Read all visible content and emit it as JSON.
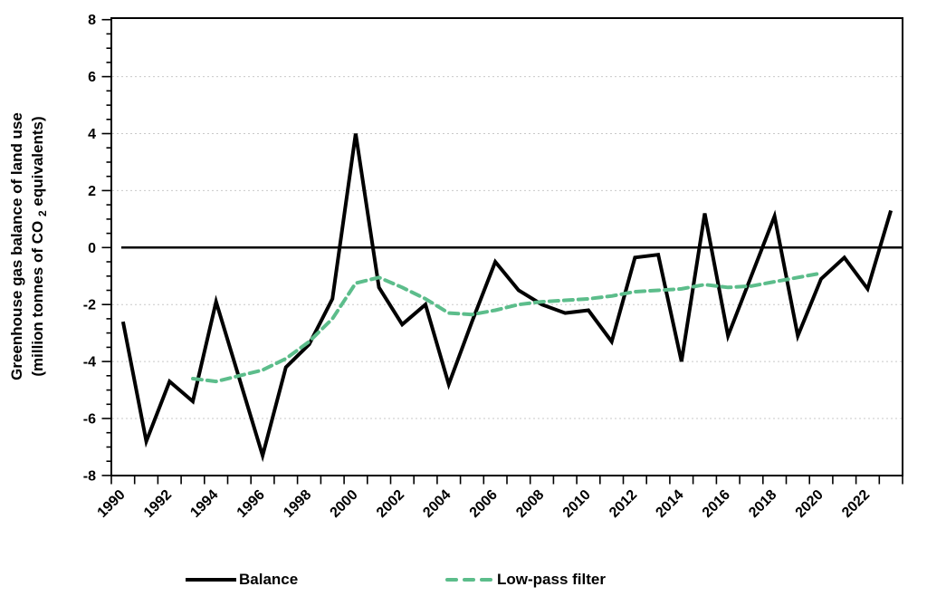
{
  "chart_data": {
    "type": "line",
    "title": "",
    "ylabel_line1": "Greenhouse gas balance of land use",
    "ylabel_line2_parts": {
      "pre": "(million tonnes of CO",
      "sub": "2",
      "post": " equivalents)"
    },
    "xlabel": "",
    "ylim": [
      -8,
      8
    ],
    "y_tick_interval": 2,
    "y_minor_tick_interval": 0.5,
    "y_tick_labels": [
      "8",
      "6",
      "4",
      "2",
      "0",
      "-2",
      "-4",
      "-6",
      "-8"
    ],
    "x_tick_labels": [
      "1990",
      "1992",
      "1994",
      "1996",
      "1998",
      "2000",
      "2002",
      "2004",
      "2006",
      "2008",
      "2010",
      "2012",
      "2014",
      "2016",
      "2018",
      "2020",
      "2022"
    ],
    "years": [
      1990,
      1991,
      1992,
      1993,
      1994,
      1995,
      1996,
      1997,
      1998,
      1999,
      2000,
      2001,
      2002,
      2003,
      2004,
      2005,
      2006,
      2007,
      2008,
      2009,
      2010,
      2011,
      2012,
      2013,
      2014,
      2015,
      2016,
      2017,
      2018,
      2019,
      2020,
      2021,
      2022,
      2023
    ],
    "grid": "horizontal-dashed",
    "legend_position": "bottom",
    "colors": {
      "balance": "#000000",
      "lowpass": "#5cbd8b",
      "gridline": "#c9c9c9",
      "axis": "#000000"
    },
    "series": [
      {
        "name": "Balance",
        "style": "solid",
        "color": "#000000",
        "values": [
          -2.6,
          -6.8,
          -4.7,
          -5.4,
          -1.9,
          -4.6,
          -7.3,
          -4.2,
          -3.4,
          -1.8,
          4.0,
          -1.4,
          -2.7,
          -2.0,
          -4.8,
          -2.6,
          -0.5,
          -1.5,
          -2.0,
          -2.3,
          -2.2,
          -3.3,
          -0.35,
          -0.25,
          -4.0,
          1.2,
          -3.1,
          -1.0,
          1.1,
          -3.1,
          -1.1,
          -0.35,
          -1.45,
          1.3
        ]
      },
      {
        "name": "Low-pass filter",
        "style": "dashed",
        "color": "#5cbd8b",
        "values": [
          null,
          null,
          null,
          -4.6,
          -4.7,
          -4.5,
          -4.3,
          -3.9,
          -3.3,
          -2.5,
          -1.25,
          -1.05,
          -1.4,
          -1.8,
          -2.3,
          -2.35,
          -2.2,
          -2.0,
          -1.9,
          -1.85,
          -1.8,
          -1.7,
          -1.55,
          -1.5,
          -1.45,
          -1.3,
          -1.4,
          -1.35,
          -1.2,
          -1.05,
          -0.9,
          null,
          null,
          null
        ]
      }
    ]
  }
}
